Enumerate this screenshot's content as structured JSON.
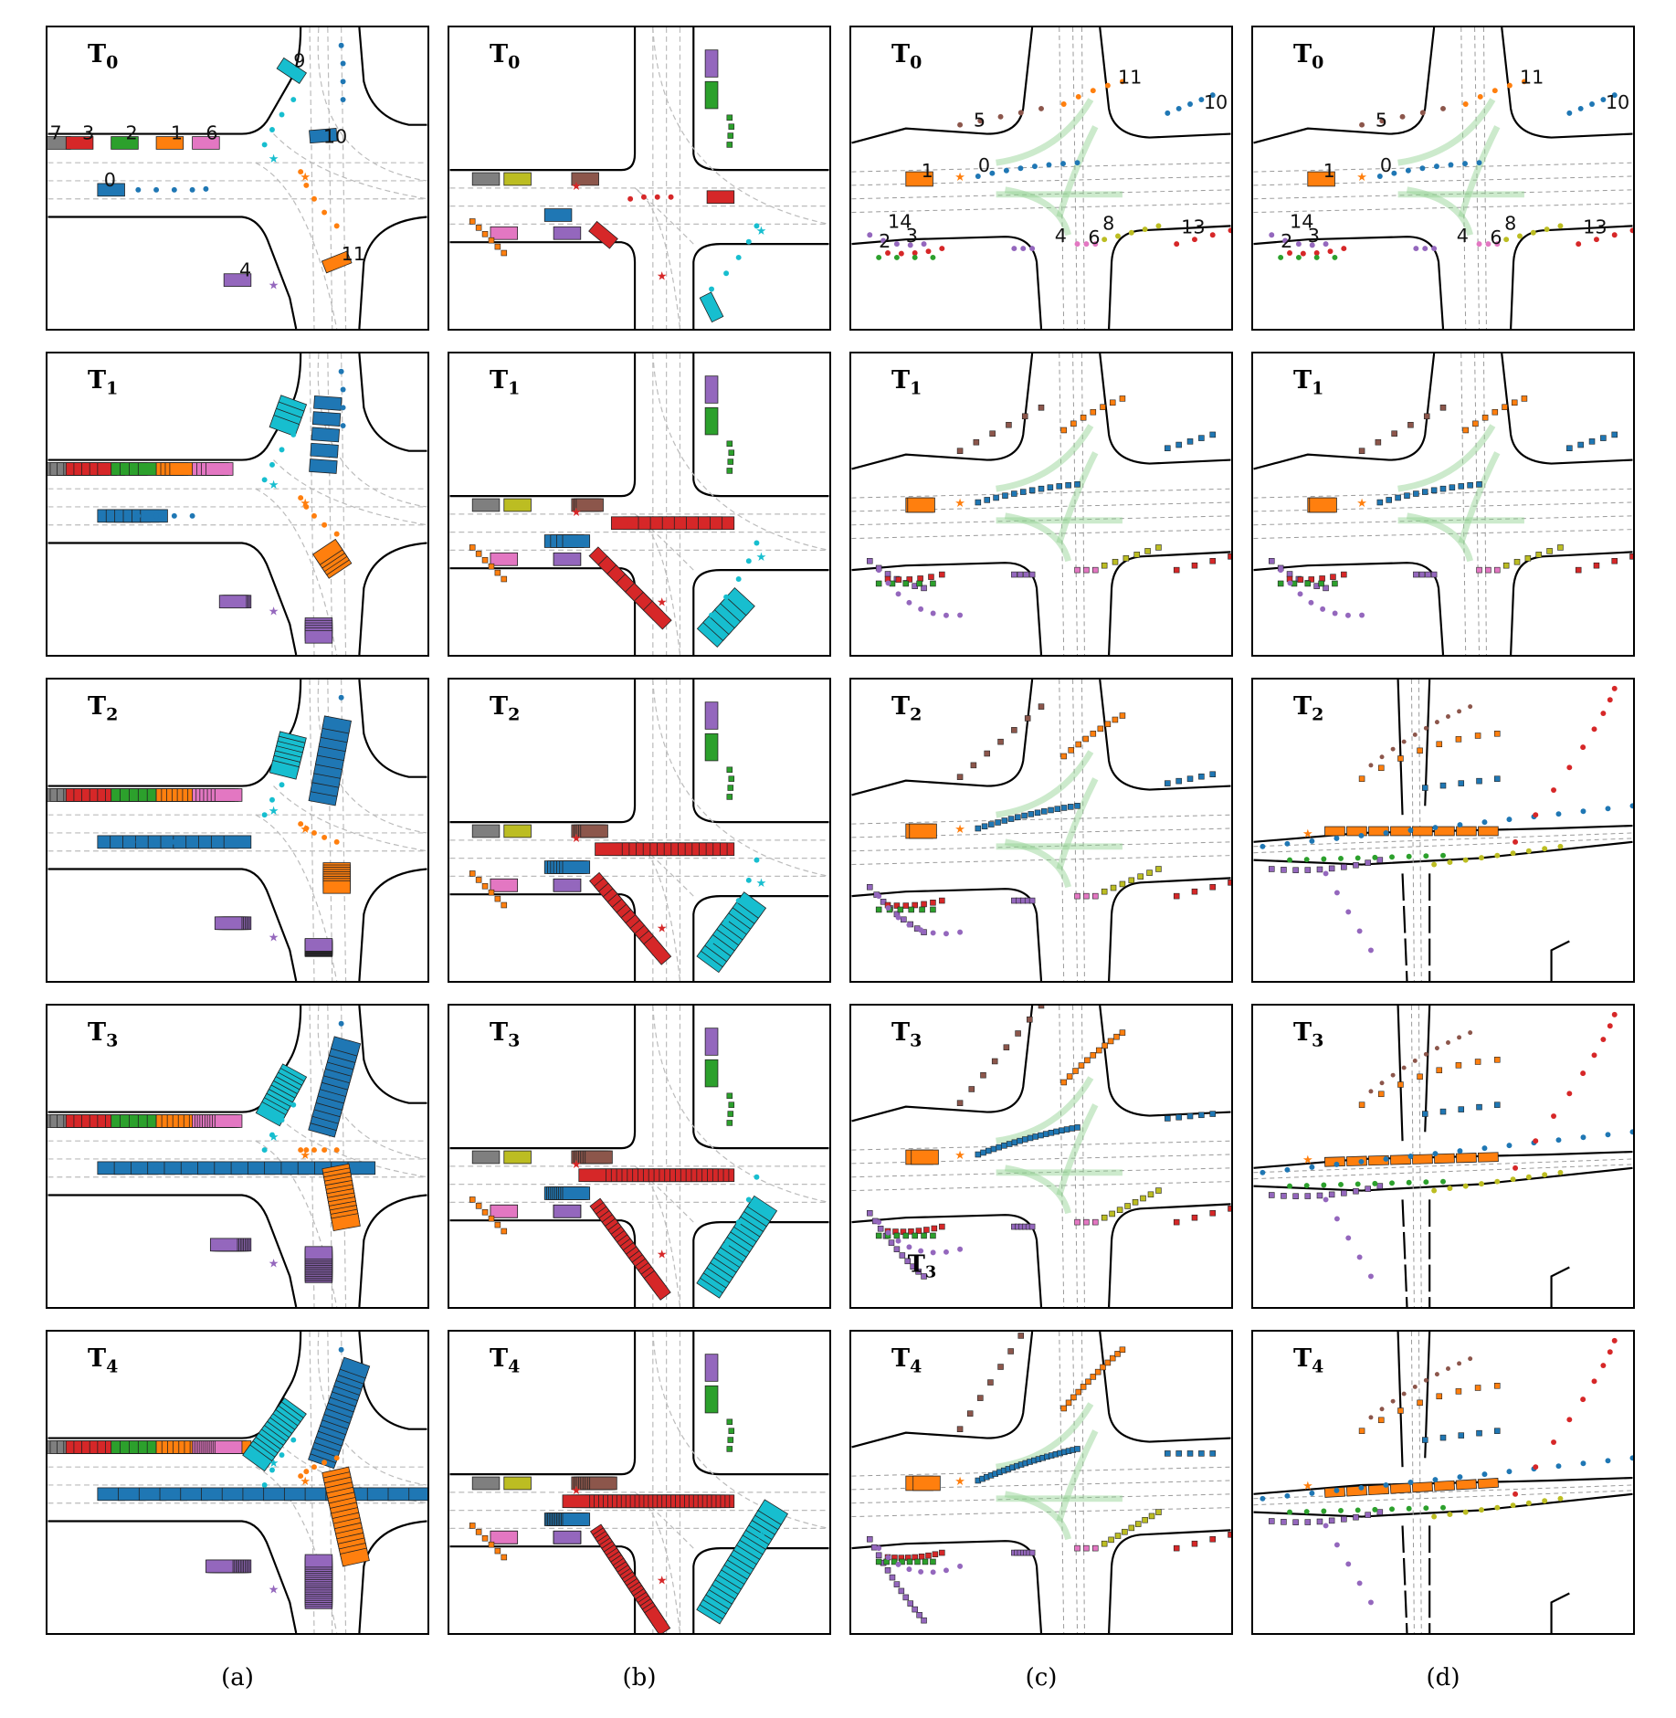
{
  "columns": [
    {
      "id": "a",
      "caption": "(a)",
      "style": "boxes"
    },
    {
      "id": "b",
      "caption": "(b)",
      "style": "boxes"
    },
    {
      "id": "c",
      "caption": "(c)",
      "style": "points"
    },
    {
      "id": "d",
      "caption": "(d)",
      "style": "points"
    }
  ],
  "rows": [
    {
      "label": "T",
      "sub": "0"
    },
    {
      "label": "T",
      "sub": "1"
    },
    {
      "label": "T",
      "sub": "2"
    },
    {
      "label": "T",
      "sub": "3"
    },
    {
      "label": "T",
      "sub": "4"
    }
  ],
  "agent_labels": {
    "a": [
      "7",
      "3",
      "2",
      "1",
      "6",
      "0",
      "9",
      "10",
      "4",
      "11"
    ],
    "c": [
      "5",
      "11",
      "10",
      "1",
      "0",
      "14",
      "2",
      "3",
      "4",
      "6",
      "8",
      "13"
    ],
    "d": [
      "5",
      "11",
      "10",
      "1",
      "0",
      "14",
      "2",
      "3",
      "4",
      "6",
      "8",
      "13"
    ]
  },
  "inline_annotation": {
    "panel": "c-3",
    "label": "T",
    "sub": "3"
  },
  "colors": {
    "blue": "#1f77b4",
    "orange": "#ff7f0e",
    "green": "#2ca02c",
    "red": "#d62728",
    "purple": "#9467bd",
    "brown": "#8c564b",
    "pink": "#e377c2",
    "gray": "#7f7f7f",
    "olive": "#bcbd22",
    "cyan": "#17becf",
    "lane": "#bbbbbb",
    "road_edge": "#000000",
    "route_highlight": "#8fd18f"
  }
}
